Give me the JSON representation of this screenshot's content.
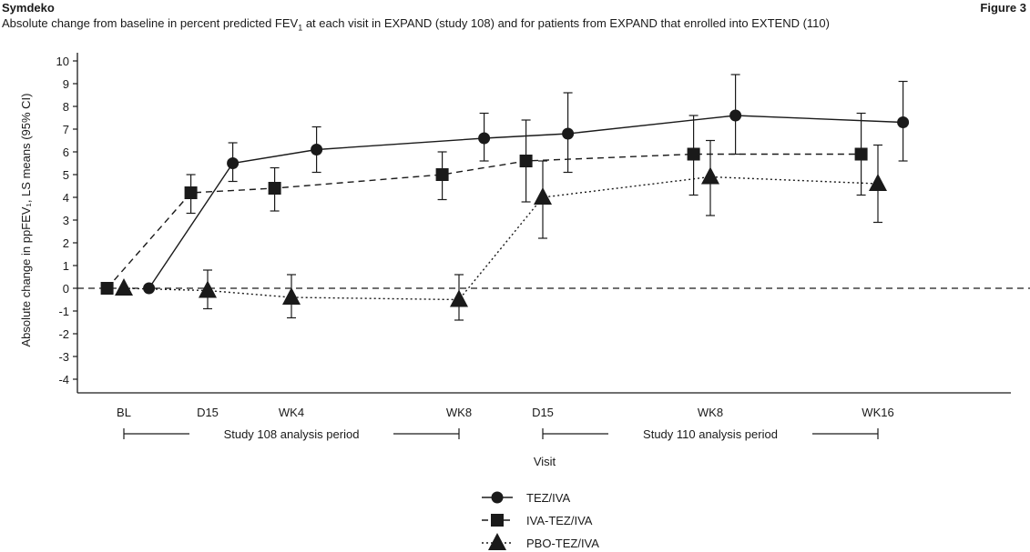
{
  "header": {
    "product": "Symdeko",
    "figure_label": "Figure 3",
    "subtitle_before": "Absolute change from baseline in percent predicted FEV",
    "subtitle_sub": "1",
    "subtitle_after": " at each visit in EXPAND (study 108) and for patients from EXPAND that enrolled into EXTEND (110)"
  },
  "chart_data": {
    "type": "line",
    "ylabel": "Absolute change in ppFEV₁, LS means (95% CI)",
    "xlabel": "Visit",
    "ylim": [
      -4.5,
      10.5
    ],
    "yticks": [
      "10",
      "9",
      "8",
      "7",
      "6",
      "5",
      "4",
      "3",
      "2",
      "1",
      "0",
      "-1",
      "-2",
      "-3",
      "-4"
    ],
    "categories": [
      "BL",
      "D15",
      "WK4",
      "WK8",
      "D15",
      "WK8",
      "WK16"
    ],
    "periods": [
      {
        "label": "Study 108 analysis period",
        "from": "BL",
        "to": "WK8"
      },
      {
        "label": "Study 110 analysis period",
        "from": "D15",
        "to": "WK16"
      }
    ],
    "reference_line": 0,
    "series": [
      {
        "name": "TEZ/IVA",
        "marker": "circle",
        "line": "solid",
        "x": [
          0.3,
          1.3,
          2.3,
          4.3,
          5.3,
          7.3,
          9.3
        ],
        "values": [
          0,
          5.5,
          6.1,
          6.6,
          6.8,
          7.6,
          7.3
        ],
        "ci_low": [
          null,
          4.7,
          5.1,
          5.6,
          5.1,
          5.9,
          5.6
        ],
        "ci_high": [
          null,
          6.4,
          7.1,
          7.7,
          8.6,
          9.4,
          9.1
        ]
      },
      {
        "name": "IVA-TEZ/IVA",
        "marker": "square",
        "line": "dashed",
        "x": [
          -0.2,
          0.8,
          1.8,
          3.8,
          4.8,
          6.8,
          8.8
        ],
        "values": [
          0,
          4.2,
          4.4,
          5.0,
          5.6,
          5.9,
          5.9
        ],
        "ci_low": [
          null,
          3.3,
          3.4,
          3.9,
          3.8,
          4.1,
          4.1
        ],
        "ci_high": [
          null,
          5.0,
          5.3,
          6.0,
          7.4,
          7.6,
          7.7
        ]
      },
      {
        "name": "PBO-TEZ/IVA",
        "marker": "triangle",
        "line": "dotted",
        "x": [
          0,
          1,
          2,
          4,
          5,
          7,
          9
        ],
        "values": [
          0,
          -0.1,
          -0.4,
          -0.5,
          4.0,
          4.9,
          4.6
        ],
        "ci_low": [
          null,
          -0.9,
          -1.3,
          -1.4,
          2.2,
          3.2,
          2.9
        ],
        "ci_high": [
          null,
          0.8,
          0.6,
          0.6,
          5.6,
          6.5,
          6.3
        ]
      }
    ],
    "tick_positions": [
      0,
      1,
      2,
      4,
      5,
      7,
      9
    ],
    "legend_position": "bottom-center",
    "grid": false,
    "colors": {
      "ink": "#1a1a1a",
      "background": "#ffffff"
    }
  }
}
